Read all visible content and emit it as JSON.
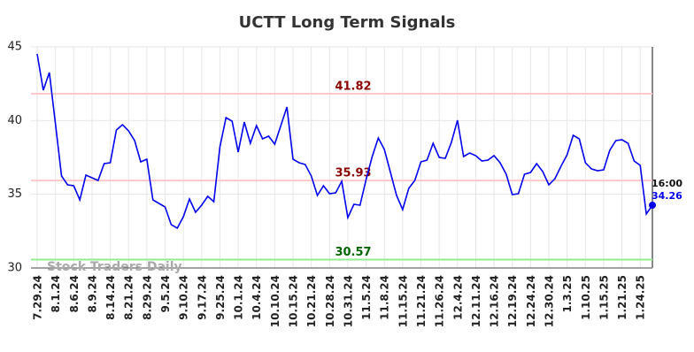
{
  "chart_data": {
    "type": "line",
    "title": "UCTT Long Term Signals",
    "watermark": "Stock Traders Daily",
    "color": "#0000ee",
    "grid": true,
    "ylim": [
      30,
      45
    ],
    "yticks": [
      30,
      35,
      40,
      45
    ],
    "categories": [
      "7.29.24",
      null,
      null,
      "8.1.24",
      null,
      null,
      "8.6.24",
      null,
      null,
      "8.9.24",
      null,
      null,
      "8.14.24",
      null,
      null,
      "8.21.24",
      null,
      null,
      "8.29.24",
      null,
      null,
      "9.5.24",
      null,
      null,
      "9.10.24",
      null,
      null,
      "9.17.24",
      null,
      null,
      "9.25.24",
      null,
      null,
      "10.1.24",
      null,
      null,
      "10.4.24",
      null,
      null,
      "10.10.24",
      null,
      null,
      "10.15.24",
      null,
      null,
      "10.21.24",
      null,
      null,
      "10.28.24",
      null,
      null,
      "10.31.24",
      null,
      null,
      "11.5.24",
      null,
      null,
      "11.8.24",
      null,
      null,
      "11.15.24",
      null,
      null,
      "11.21.24",
      null,
      null,
      "11.26.24",
      null,
      null,
      "12.4.24",
      null,
      null,
      "12.11.24",
      null,
      null,
      "12.16.24",
      null,
      null,
      "12.19.24",
      null,
      null,
      "12.24.24",
      null,
      null,
      "12.30.24",
      null,
      null,
      "1.3.25",
      null,
      null,
      "1.10.25",
      null,
      null,
      "1.15.25",
      null,
      null,
      "1.21.25",
      null,
      null,
      "1.24.25",
      null,
      null
    ],
    "values": [
      44.52,
      42.06,
      43.26,
      39.78,
      36.24,
      35.64,
      35.58,
      34.62,
      36.3,
      36.12,
      35.94,
      37.08,
      37.14,
      39.36,
      39.72,
      39.3,
      38.64,
      37.2,
      37.38,
      34.62,
      34.38,
      34.14,
      32.94,
      32.7,
      33.48,
      34.68,
      33.78,
      34.26,
      34.86,
      34.5,
      38.22,
      40.2,
      39.96,
      37.86,
      39.9,
      38.46,
      39.66,
      38.76,
      38.94,
      38.4,
      39.66,
      40.92,
      37.38,
      37.14,
      37.02,
      36.24,
      34.92,
      35.58,
      35.04,
      35.1,
      35.88,
      33.42,
      34.32,
      34.26,
      36.0,
      37.56,
      38.82,
      38.04,
      36.48,
      34.92,
      33.96,
      35.4,
      35.94,
      37.2,
      37.32,
      38.46,
      37.5,
      37.44,
      38.52,
      40.02,
      37.56,
      37.8,
      37.62,
      37.26,
      37.32,
      37.62,
      37.14,
      36.36,
      34.98,
      35.04,
      36.36,
      36.48,
      37.08,
      36.54,
      35.64,
      36.06,
      36.9,
      37.68,
      39.0,
      38.76,
      37.14,
      36.72,
      36.6,
      36.66,
      37.98,
      38.64,
      38.7,
      38.46,
      37.26,
      36.96,
      33.66,
      34.26
    ],
    "last_time": "16:00",
    "levels": [
      {
        "value": 41.82,
        "color": "#ffc8c8",
        "label_color": "#8b0000"
      },
      {
        "value": 35.93,
        "color": "#ffc8c8",
        "label_color": "#8b0000"
      },
      {
        "value": 30.57,
        "color": "#90ee90",
        "label_color": "#006400"
      }
    ]
  }
}
